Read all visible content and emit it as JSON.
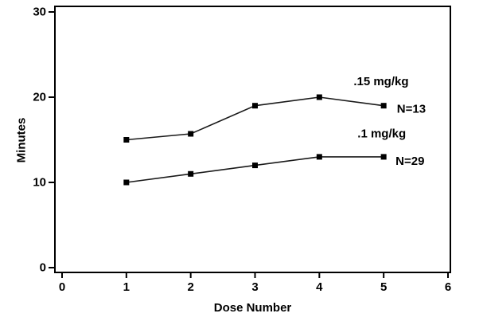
{
  "figure": {
    "background": "#ffffff",
    "axis_color": "#000000",
    "text_color": "#000000",
    "series_line_color": "#1a1a1a",
    "marker_color": "#000000"
  },
  "chart_data": {
    "type": "line",
    "title": "",
    "xlabel": "Dose Number",
    "ylabel": "Minutes",
    "xlim": [
      0,
      6
    ],
    "ylim": [
      0,
      30
    ],
    "xticks": [
      0,
      1,
      2,
      3,
      4,
      5,
      6
    ],
    "yticks": [
      0,
      10,
      20,
      30
    ],
    "grid": false,
    "legend_position": "inline-annotations",
    "marker": "filled-square",
    "x": [
      1,
      2,
      3,
      4,
      5
    ],
    "series": [
      {
        "name": ".15 mg/kg",
        "n_label": "N=13",
        "values": [
          15,
          15.7,
          19,
          20,
          19
        ]
      },
      {
        "name": ".1 mg/kg",
        "n_label": "N=29",
        "values": [
          10,
          11,
          12,
          13,
          13
        ]
      }
    ],
    "annotations": [
      {
        "text": ".15 mg/kg",
        "x": 4.96,
        "y": 21.8
      },
      {
        "text": "N=13",
        "x": 5.43,
        "y": 18.6
      },
      {
        "text": ".1 mg/kg",
        "x": 4.97,
        "y": 15.7
      },
      {
        "text": "N=29",
        "x": 5.41,
        "y": 12.5
      }
    ]
  }
}
